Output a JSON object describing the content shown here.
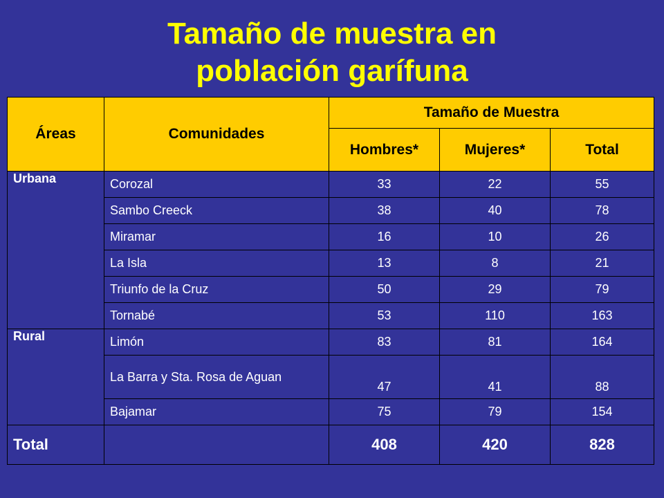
{
  "title_line1": "Tamaño de muestra en",
  "title_line2": "población garífuna",
  "headers": {
    "areas": "Áreas",
    "comunidades": "Comunidades",
    "tamano": "Tamaño de Muestra",
    "hombres": "Hombres*",
    "mujeres": "Mujeres*",
    "total": "Total"
  },
  "rows": [
    {
      "area": "Urbana",
      "comunidad": "Corozal",
      "hombres": "33",
      "mujeres": "22",
      "total": "55"
    },
    {
      "area": "",
      "comunidad": "Sambo Creeck",
      "hombres": "38",
      "mujeres": "40",
      "total": "78"
    },
    {
      "area": "",
      "comunidad": "Miramar",
      "hombres": "16",
      "mujeres": "10",
      "total": "26"
    },
    {
      "area": "",
      "comunidad": "La Isla",
      "hombres": "13",
      "mujeres": "8",
      "total": "21"
    },
    {
      "area": "",
      "comunidad": "Triunfo de la Cruz",
      "hombres": "50",
      "mujeres": "29",
      "total": "79"
    },
    {
      "area": "",
      "comunidad": "Tornabé",
      "hombres": "53",
      "mujeres": "110",
      "total": "163"
    },
    {
      "area": "Rural",
      "comunidad": "Limón",
      "hombres": "83",
      "mujeres": "81",
      "total": "164"
    },
    {
      "area": "",
      "comunidad": "La Barra y Sta. Rosa de Aguan",
      "hombres": "47",
      "mujeres": "41",
      "total": "88"
    },
    {
      "area": "",
      "comunidad": "Bajamar",
      "hombres": "75",
      "mujeres": "79",
      "total": "154"
    }
  ],
  "total_row": {
    "label": "Total",
    "hombres": "408",
    "mujeres": "420",
    "total": "828"
  },
  "colors": {
    "background": "#333399",
    "title": "#FFFF00",
    "header_bg": "#FFCC00"
  }
}
